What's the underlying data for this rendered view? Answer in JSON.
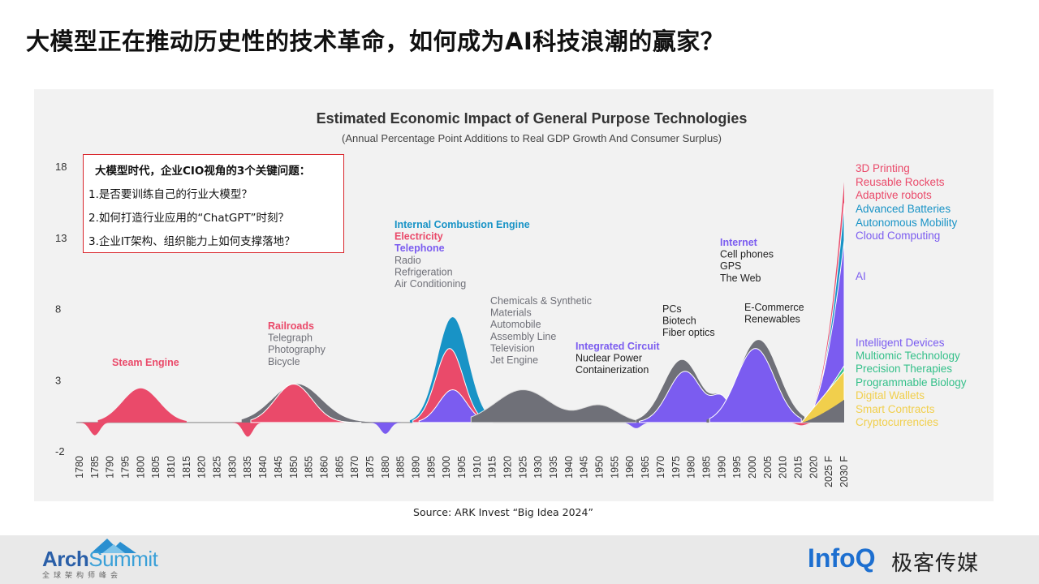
{
  "slide_title": "大模型正在推动历史性的技术革命，如何成为AI科技浪潮的赢家？",
  "callout": {
    "heading": "大模型时代，企业CIO视角的3个关键问题：",
    "questions": [
      "1.是否要训练自己的行业大模型？",
      "2.如何打造行业应用的“ChatGPT”时刻？",
      "3.企业IT架构、组织能力上如何支撑落地？"
    ]
  },
  "source": "Source: ARK Invest “Big Idea 2024”",
  "footer": {
    "arch_name_1": "Arch",
    "arch_name_2": "Summit",
    "arch_sub": "全球架构师峰会",
    "infoq_1": "Info",
    "infoq_2": "Q",
    "geek": "极客传媒"
  },
  "colors": {
    "red": "#ea4a6a",
    "purple": "#7b5cf0",
    "blue": "#1893c6",
    "gray": "#6f7078",
    "green": "#35c08a",
    "yellow": "#f1cf4c",
    "title_red": "#d9262c"
  },
  "chart_data": {
    "type": "area",
    "title": "Estimated Economic Impact of General Purpose Technologies",
    "subtitle": "(Annual Percentage Point Additions to Real GDP Growth And Consumer Surplus)",
    "ylim": [
      -2,
      18
    ],
    "yticks": [
      18,
      13,
      8,
      3,
      -2
    ],
    "xticks": [
      "1780",
      "1785",
      "1790",
      "1795",
      "1800",
      "1805",
      "1810",
      "1815",
      "1820",
      "1825",
      "1830",
      "1835",
      "1840",
      "1845",
      "1850",
      "1855",
      "1860",
      "1865",
      "1870",
      "1875",
      "1880",
      "1885",
      "1890",
      "1895",
      "1900",
      "1905",
      "1910",
      "1915",
      "1920",
      "1925",
      "1930",
      "1935",
      "1940",
      "1945",
      "1950",
      "1955",
      "1960",
      "1965",
      "1970",
      "1975",
      "1980",
      "1985",
      "1990",
      "1995",
      "2000",
      "2005",
      "2010",
      "2015",
      "2020",
      "2025 F",
      "2030 F"
    ],
    "peaks": [
      {
        "name": "Steam Engine",
        "center": 1800,
        "value": 2.4,
        "color": "red"
      },
      {
        "name": "Railroads",
        "center": 1850,
        "value": 2.7,
        "color": "red"
      },
      {
        "name": "Electricity / ICE / Telephone",
        "center": 1902,
        "value": 7.4,
        "color": "blue"
      },
      {
        "name": "Chemicals & Synthetic Materials era",
        "center": 1925,
        "value": 2.5,
        "color": "gray"
      },
      {
        "name": "PCs / Biotech / Fiber optics",
        "center": 1977,
        "value": 4.4,
        "color": "gray"
      },
      {
        "name": "Internet / E-Commerce",
        "center": 2002,
        "value": 5.8,
        "color": "purple"
      },
      {
        "name": "AI and convergent technologies",
        "center": 2030,
        "value": 16.9,
        "color": "red"
      }
    ],
    "dips": [
      {
        "year": 1785,
        "value": -0.9
      },
      {
        "year": 1835,
        "value": -1.0
      },
      {
        "year": 1880,
        "value": -0.8
      },
      {
        "year": 1962,
        "value": -0.4
      },
      {
        "year": 2016,
        "value": -0.2
      }
    ],
    "annotations": [
      {
        "lines": [
          "Steam Engine"
        ],
        "colors": [
          "red"
        ]
      },
      {
        "lines": [
          "Railroads",
          "Telegraph",
          "Photography",
          "Bicycle"
        ],
        "colors": [
          "red",
          "gray",
          "gray",
          "gray"
        ]
      },
      {
        "lines": [
          "Internal Combustion Engine",
          "Electricity",
          "Telephone",
          "Radio",
          "Refrigeration",
          "Air Conditioning"
        ],
        "colors": [
          "blue",
          "red",
          "purple",
          "gray",
          "gray",
          "gray"
        ]
      },
      {
        "lines": [
          "Chemicals & Synthetic",
          "Materials",
          "Automobile",
          "Assembly Line",
          "Television",
          "Jet Engine"
        ],
        "colors": [
          "gray",
          "gray",
          "gray",
          "gray",
          "gray",
          "gray"
        ]
      },
      {
        "lines": [
          "Integrated Circuit",
          "Nuclear Power",
          "Containerization"
        ],
        "colors": [
          "purple",
          "dark",
          "dark"
        ]
      },
      {
        "lines": [
          "PCs",
          "Biotech",
          "Fiber optics"
        ],
        "colors": [
          "dark",
          "dark",
          "dark"
        ]
      },
      {
        "lines": [
          "Internet",
          "Cell phones",
          "GPS",
          "The Web"
        ],
        "colors": [
          "purple",
          "dark",
          "dark",
          "dark"
        ]
      },
      {
        "lines": [
          "E-Commerce",
          "Renewables"
        ],
        "colors": [
          "dark",
          "dark"
        ]
      }
    ],
    "legend": [
      {
        "label": "3D Printing",
        "color": "red"
      },
      {
        "label": "Reusable Rockets",
        "color": "red"
      },
      {
        "label": "Adaptive robots",
        "color": "red"
      },
      {
        "label": "Advanced Batteries",
        "color": "blue"
      },
      {
        "label": "Autonomous Mobility",
        "color": "blue"
      },
      {
        "label": "Cloud Computing",
        "color": "purple"
      },
      {
        "label": "AI",
        "color": "purple"
      },
      {
        "label": "Intelligent Devices",
        "color": "purple"
      },
      {
        "label": "Multiomic Technology",
        "color": "green"
      },
      {
        "label": "Precision Therapies",
        "color": "green"
      },
      {
        "label": "Programmable Biology",
        "color": "green"
      },
      {
        "label": "Digital Wallets",
        "color": "yellow"
      },
      {
        "label": "Smart Contracts",
        "color": "yellow"
      },
      {
        "label": "Cryptocurrencies",
        "color": "yellow"
      }
    ]
  }
}
